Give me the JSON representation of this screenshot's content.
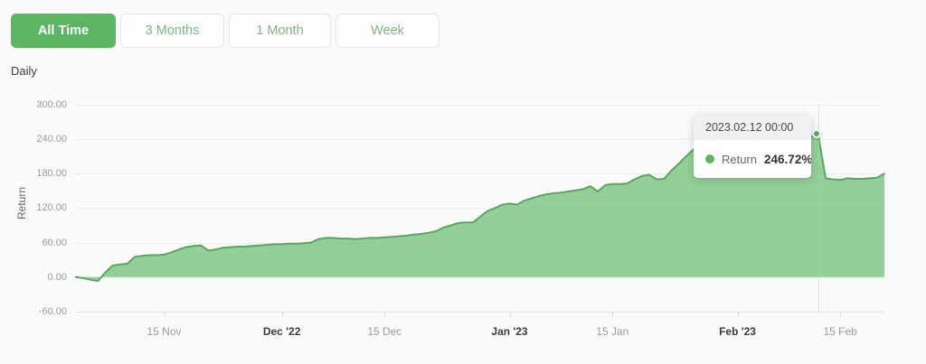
{
  "toolbar": {
    "buttons": [
      {
        "label": "All Time",
        "active": true
      },
      {
        "label": "3 Months",
        "active": false
      },
      {
        "label": "1 Month",
        "active": false
      },
      {
        "label": "Week",
        "active": false
      }
    ]
  },
  "frequency_label": "Daily",
  "chart_data": {
    "type": "area",
    "title": "",
    "xlabel": "",
    "ylabel": "Return",
    "series_name": "Return",
    "frequency": "Daily",
    "ylim": [
      -60,
      300
    ],
    "y_ticks": [
      300,
      240,
      180,
      120,
      60,
      0,
      -60
    ],
    "y_tick_labels": [
      "300.00",
      "240.00",
      "180.00",
      "120.00",
      "60.00",
      "0.00",
      "-60.00"
    ],
    "grid": true,
    "start_date": "2022-11-03",
    "end_date": "2023-02-21",
    "x_ticks": [
      {
        "label": "15 Nov",
        "day": 12,
        "emphasis": false
      },
      {
        "label": "Dec '22",
        "day": 28,
        "emphasis": true
      },
      {
        "label": "15 Dec",
        "day": 42,
        "emphasis": false
      },
      {
        "label": "Jan '23",
        "day": 59,
        "emphasis": true
      },
      {
        "label": "15 Jan",
        "day": 73,
        "emphasis": false
      },
      {
        "label": "Feb '23",
        "day": 90,
        "emphasis": true
      },
      {
        "label": "15 Feb",
        "day": 104,
        "emphasis": false
      }
    ],
    "values": [
      0,
      -2,
      -5,
      -7,
      8,
      20,
      22,
      23,
      35,
      37,
      38,
      38,
      39,
      43,
      48,
      52,
      54,
      55,
      46,
      48,
      51,
      52,
      53,
      53,
      54,
      55,
      56,
      57,
      57,
      58,
      58,
      59,
      60,
      66,
      68,
      68,
      67,
      67,
      66,
      67,
      68,
      68,
      69,
      70,
      71,
      72,
      74,
      75,
      77,
      80,
      86,
      90,
      94,
      95,
      95,
      105,
      115,
      120,
      126,
      128,
      126,
      133,
      137,
      141,
      144,
      146,
      147,
      149,
      151,
      153,
      158,
      149,
      160,
      162,
      162,
      163,
      170,
      176,
      178,
      170,
      171,
      185,
      197,
      210,
      222,
      228,
      232,
      230,
      234,
      236,
      235,
      237,
      239,
      237,
      240,
      242,
      240,
      242,
      244,
      243,
      245,
      246.72,
      172,
      170,
      169,
      172,
      171,
      171,
      172,
      173,
      180
    ],
    "highlight": {
      "day": 101,
      "value": 246.72,
      "date_label": "2023.02.12 00:00"
    }
  },
  "tooltip": {
    "header": "2023.02.12 00:00",
    "series_label": "Return",
    "value": "246.72%"
  },
  "colors": {
    "accent_green": "#5cb563",
    "area_fill": "#63b868",
    "line_stroke": "#57a85e",
    "marker": "#53ad5a",
    "grid": "#ececec",
    "background": "#fafafa"
  }
}
